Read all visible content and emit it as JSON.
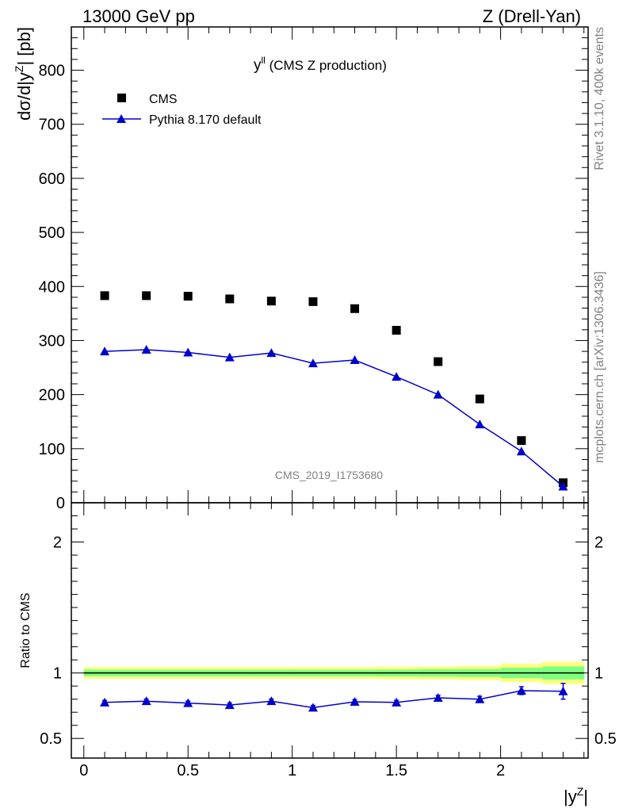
{
  "header": {
    "left": "13000 GeV pp",
    "right": "Z (Drell-Yan)"
  },
  "side_labels": {
    "rivet": "Rivet 3.1.10,  400k events",
    "mcplots": "mcplots.cern.ch [arXiv:1306.3436]"
  },
  "watermark": "CMS_2019_I1753680",
  "colors": {
    "data": "#000000",
    "mc": "#0000cc",
    "band_outer": "#ffff80",
    "band_inner": "#7fff7f"
  },
  "chart_data": [
    {
      "type": "scatter",
      "panel": "main",
      "title_main": "y",
      "title_sup": "ll",
      "title_rest": " (CMS Z production)",
      "ylabel": "dσ/d|y",
      "ylabel_sup": "Z",
      "ylabel_rest": "| [pb]",
      "ylim": [
        0,
        880
      ],
      "yticks": [
        0,
        100,
        200,
        300,
        400,
        500,
        600,
        700,
        800
      ],
      "ytick_labels": [
        "0",
        "100",
        "200",
        "300",
        "400",
        "500",
        "600",
        "700",
        "800"
      ],
      "xlim": [
        -0.06,
        2.42
      ],
      "x": [
        0.1,
        0.3,
        0.5,
        0.7,
        0.9,
        1.1,
        1.3,
        1.5,
        1.7,
        1.9,
        2.1,
        2.3
      ],
      "legend_position": "top-left",
      "series": [
        {
          "name": "CMS",
          "marker": "square",
          "values": [
            383,
            383,
            382,
            377,
            373,
            372,
            359,
            319,
            261,
            192,
            115,
            37
          ]
        },
        {
          "name": "Pythia 8.170 default",
          "marker": "triangle",
          "values": [
            280,
            283,
            278,
            269,
            277,
            258,
            264,
            233,
            200,
            145,
            95,
            30
          ],
          "errors": [
            6,
            7,
            6,
            6,
            6,
            6,
            6,
            5,
            5,
            4,
            4,
            3
          ]
        }
      ]
    },
    {
      "type": "line",
      "panel": "ratio",
      "ylabel": "Ratio to CMS",
      "ylim": [
        0.35,
        2.3
      ],
      "yticks": [
        0.5,
        1,
        2
      ],
      "ytick_labels": [
        "0.5",
        "1",
        "2"
      ],
      "xlabel": "|y",
      "xlabel_sup": "Z",
      "xlabel_rest": "|",
      "xlim": [
        -0.06,
        2.42
      ],
      "xticks": [
        0,
        0.5,
        1,
        1.5,
        2
      ],
      "xtick_labels": [
        "0",
        "0.5",
        "1",
        "1.5",
        "2"
      ],
      "x": [
        0.1,
        0.3,
        0.5,
        0.7,
        0.9,
        1.1,
        1.3,
        1.5,
        1.7,
        1.9,
        2.1,
        2.3
      ],
      "reference": 1,
      "band_inner_halfwidth": [
        0.025,
        0.025,
        0.025,
        0.025,
        0.025,
        0.025,
        0.025,
        0.026,
        0.028,
        0.03,
        0.04,
        0.05
      ],
      "band_outer_halfwidth": [
        0.045,
        0.045,
        0.045,
        0.045,
        0.045,
        0.045,
        0.045,
        0.048,
        0.05,
        0.055,
        0.07,
        0.085
      ],
      "series": [
        {
          "name": "Pythia 8.170 default",
          "values": [
            0.775,
            0.785,
            0.77,
            0.755,
            0.785,
            0.735,
            0.78,
            0.775,
            0.81,
            0.8,
            0.865,
            0.86
          ],
          "errors": [
            0.015,
            0.015,
            0.015,
            0.016,
            0.016,
            0.017,
            0.016,
            0.016,
            0.019,
            0.022,
            0.03,
            0.06
          ]
        }
      ]
    }
  ]
}
